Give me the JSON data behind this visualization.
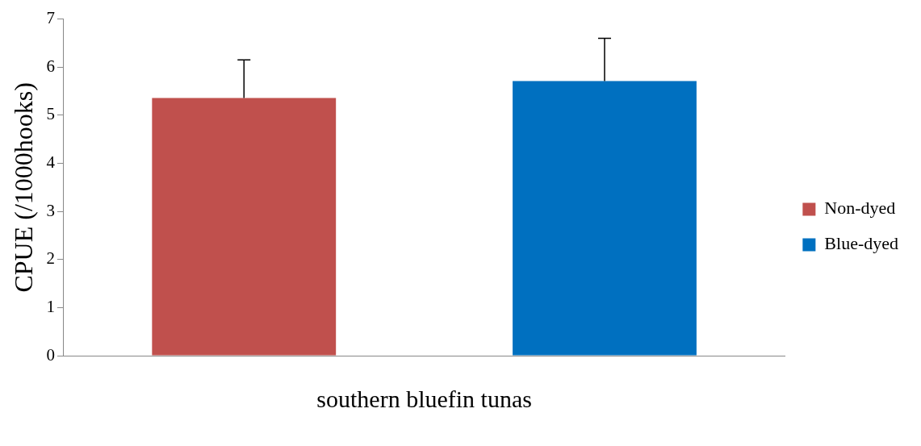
{
  "chart_data": {
    "type": "bar",
    "ylabel": "CPUE (/1000hooks)",
    "categories": [
      "southern bluefin tunas"
    ],
    "series": [
      {
        "name": "Non-dyed",
        "color": "#c0504d",
        "values": [
          5.36
        ],
        "errors": [
          [
            5.36,
            6.15
          ]
        ]
      },
      {
        "name": "Blue-dyed",
        "color": "#0070c0",
        "values": [
          5.71
        ],
        "errors": [
          [
            5.71,
            6.6
          ]
        ]
      }
    ],
    "ylim": [
      0,
      7
    ],
    "yticks": [
      0,
      1,
      2,
      3,
      4,
      5,
      6,
      7
    ],
    "grid": false,
    "legend": "right"
  }
}
